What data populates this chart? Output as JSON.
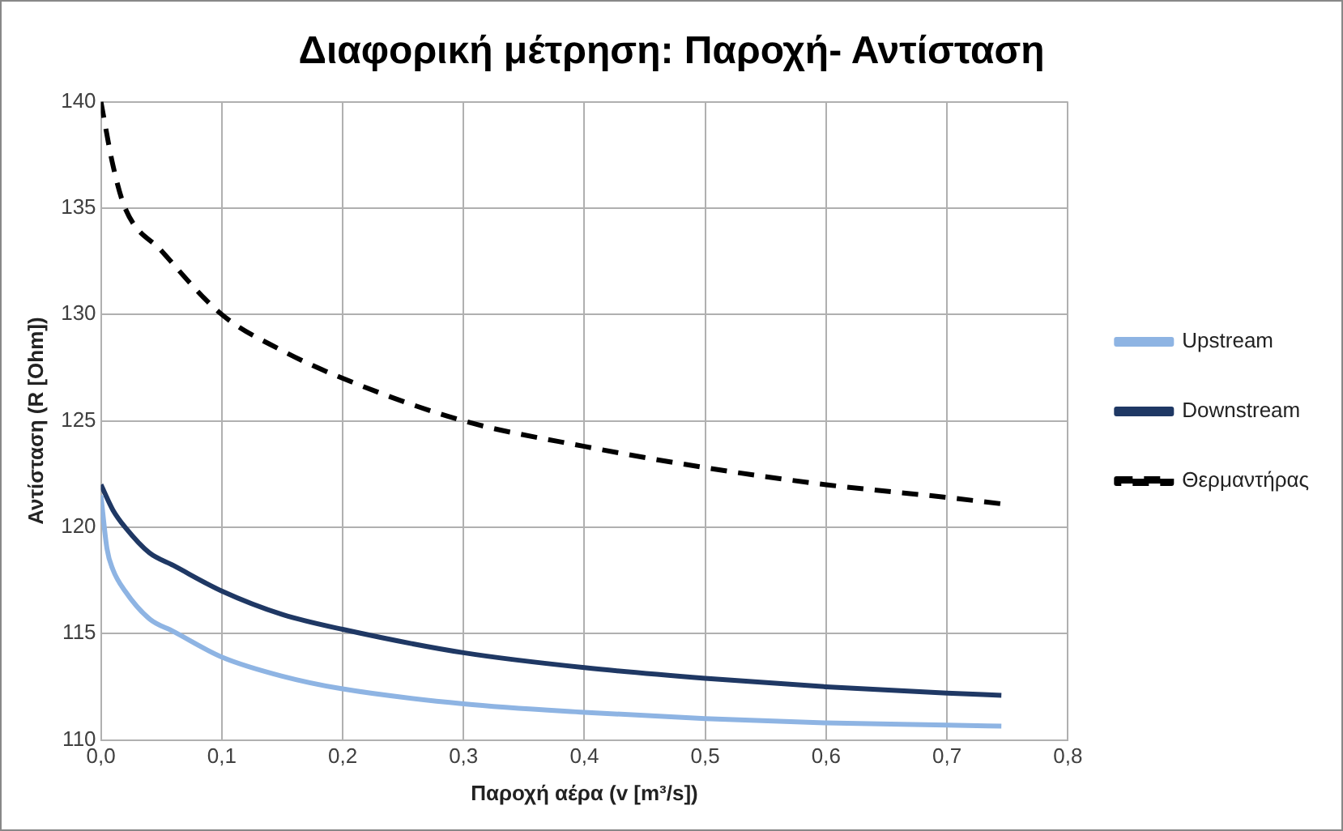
{
  "chart_data": {
    "type": "line",
    "title": "Διαφορική μέτρηση: Παροχή- Αντίσταση",
    "xlabel": "Παροχή αέρα (v [m³/s])",
    "ylabel": "Αντίσταση (R [Ohm])",
    "xlim": [
      0,
      0.8
    ],
    "xticks": [
      {
        "value": 0,
        "label": "0,0"
      },
      {
        "value": 0.1,
        "label": "0,1"
      },
      {
        "value": 0.2,
        "label": "0,2"
      },
      {
        "value": 0.3,
        "label": "0,3"
      },
      {
        "value": 0.4,
        "label": "0,4"
      },
      {
        "value": 0.5,
        "label": "0,5"
      },
      {
        "value": 0.6,
        "label": "0,6"
      },
      {
        "value": 0.7,
        "label": "0,7"
      },
      {
        "value": 0.8,
        "label": "0,8"
      }
    ],
    "ylim": [
      110,
      140
    ],
    "yticks": [
      110,
      115,
      120,
      125,
      130,
      135,
      140
    ],
    "grid": true,
    "legend": "right",
    "marker": "none",
    "series": [
      {
        "name": "Upstream",
        "color": "#8eb4e3",
        "line_style": "solid",
        "x": [
          0,
          0.005,
          0.01,
          0.02,
          0.04,
          0.06,
          0.1,
          0.15,
          0.2,
          0.3,
          0.4,
          0.5,
          0.6,
          0.7,
          0.745
        ],
        "values": [
          121.5,
          119,
          118,
          117,
          115.7,
          115.1,
          113.9,
          113,
          112.4,
          111.7,
          111.3,
          111,
          110.8,
          110.7,
          110.65
        ]
      },
      {
        "name": "Downstream",
        "color": "#1f3864",
        "line_style": "solid",
        "x": [
          0,
          0.01,
          0.02,
          0.04,
          0.06,
          0.1,
          0.15,
          0.2,
          0.3,
          0.4,
          0.5,
          0.6,
          0.7,
          0.745
        ],
        "values": [
          122,
          120.8,
          120,
          118.8,
          118.2,
          117,
          115.9,
          115.2,
          114.1,
          113.4,
          112.9,
          112.5,
          112.2,
          112.1
        ]
      },
      {
        "name": "Θερμαντήρας",
        "color": "#000000",
        "line_style": "dashed",
        "x": [
          0,
          0.01,
          0.02,
          0.05,
          0.1,
          0.15,
          0.2,
          0.3,
          0.4,
          0.5,
          0.6,
          0.7,
          0.745
        ],
        "values": [
          140,
          137,
          135,
          133,
          130,
          128.3,
          127,
          125,
          123.8,
          122.8,
          122,
          121.4,
          121.1
        ]
      }
    ]
  }
}
